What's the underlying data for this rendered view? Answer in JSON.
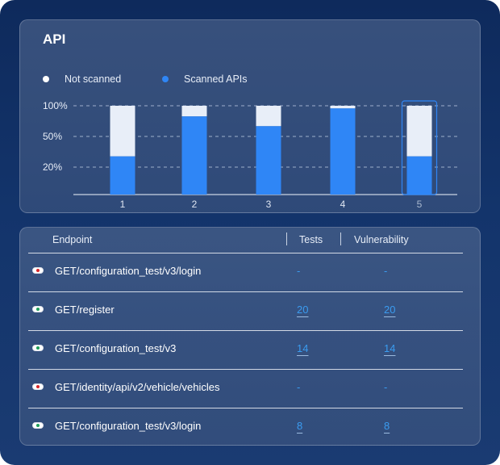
{
  "api_chart": {
    "title": "API",
    "legend": [
      {
        "label": "Not scanned",
        "color": "#ffffff"
      },
      {
        "label": "Scanned APIs",
        "color": "#2f86f6"
      }
    ]
  },
  "chart_data": {
    "type": "bar",
    "title": "API",
    "categories": [
      "1",
      "2",
      "3",
      "4",
      "5"
    ],
    "y_ticks": [
      "100%",
      "50%",
      "20%"
    ],
    "series": [
      {
        "name": "Scanned APIs",
        "values": [
          43,
          88,
          77,
          97,
          43
        ]
      },
      {
        "name": "Not scanned",
        "values": [
          57,
          12,
          23,
          3,
          57
        ]
      }
    ],
    "stacked": true,
    "ylim": [
      0,
      100
    ],
    "grid": true,
    "legend_position": "top-left",
    "selected_category": "5",
    "colors": {
      "scanned": "#2f86f6",
      "not_scanned": "#e8eef8"
    }
  },
  "table": {
    "headers": {
      "endpoint": "Endpoint",
      "tests": "Tests",
      "vulnerability": "Vulnerability"
    },
    "rows": [
      {
        "status": "failed",
        "status_color": "#d8262a",
        "endpoint": "GET/configuration_test/v3/login",
        "tests": "-",
        "vulnerability": "-"
      },
      {
        "status": "passed",
        "status_color": "#1f9e5a",
        "endpoint": "GET/register",
        "tests": "20",
        "vulnerability": "20"
      },
      {
        "status": "passed",
        "status_color": "#1f9e5a",
        "endpoint": "GET/configuration_test/v3",
        "tests": "14",
        "vulnerability": "14"
      },
      {
        "status": "failed",
        "status_color": "#d8262a",
        "endpoint": "GET/identity/api/v2/vehicle/vehicles",
        "tests": "-",
        "vulnerability": "-"
      },
      {
        "status": "passed",
        "status_color": "#1f9e5a",
        "endpoint": "GET/configuration_test/v3/login",
        "tests": "8",
        "vulnerability": "8"
      }
    ]
  }
}
